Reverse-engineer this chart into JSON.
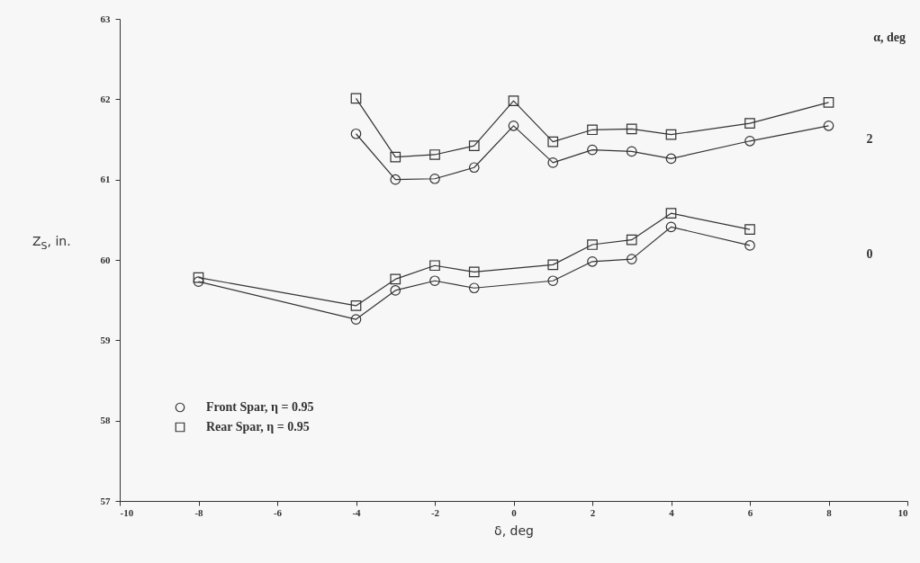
{
  "chart_data": {
    "type": "line",
    "xlabel": "δ, deg",
    "ylabel": "Z$_{S}$, in.",
    "xlim": [
      -10,
      10
    ],
    "xticks": [
      -10,
      -8,
      -6,
      -4,
      -2,
      0,
      2,
      4,
      6,
      8,
      10
    ],
    "ylim": [
      57,
      63
    ],
    "yticks": [
      57,
      58,
      59,
      60,
      61,
      62,
      63
    ],
    "grid": false,
    "legend": "bottom left",
    "line_style": "solid",
    "series": [
      {
        "name": "Front Spar, η = 0.95",
        "color": "#333333",
        "marker": "circle",
        "x": [
          -8,
          -4,
          -3,
          -2,
          -1,
          1,
          2,
          3,
          4,
          6
        ],
        "values": [
          59.73,
          59.26,
          59.62,
          59.74,
          59.65,
          59.74,
          59.98,
          60.01,
          60.41,
          60.18
        ]
      },
      {
        "name": "Rear Spar, η = 0.95",
        "color": "#333333",
        "marker": "square",
        "x": [
          -8,
          -4,
          -3,
          -2,
          -1,
          1,
          2,
          3,
          4,
          6
        ],
        "values": [
          59.78,
          59.43,
          59.76,
          59.93,
          59.85,
          59.94,
          60.19,
          60.25,
          60.58,
          60.38
        ]
      },
      {
        "color": "#333333",
        "marker": "circle",
        "x": [
          -4,
          -3,
          -2,
          -1,
          0,
          1,
          2,
          3,
          4,
          6,
          8
        ],
        "values": [
          61.57,
          61.0,
          61.01,
          61.15,
          61.67,
          61.21,
          61.37,
          61.35,
          61.26,
          61.48,
          61.67
        ]
      },
      {
        "color": "#333333",
        "marker": "square",
        "x": [
          -4,
          -3,
          -2,
          -1,
          0,
          1,
          2,
          3,
          4,
          6,
          8
        ],
        "values": [
          62.01,
          61.28,
          61.31,
          61.42,
          61.98,
          61.47,
          61.62,
          61.63,
          61.56,
          61.7,
          61.96
        ]
      }
    ],
    "annotations": [
      "α, deg",
      "2",
      "0"
    ]
  }
}
